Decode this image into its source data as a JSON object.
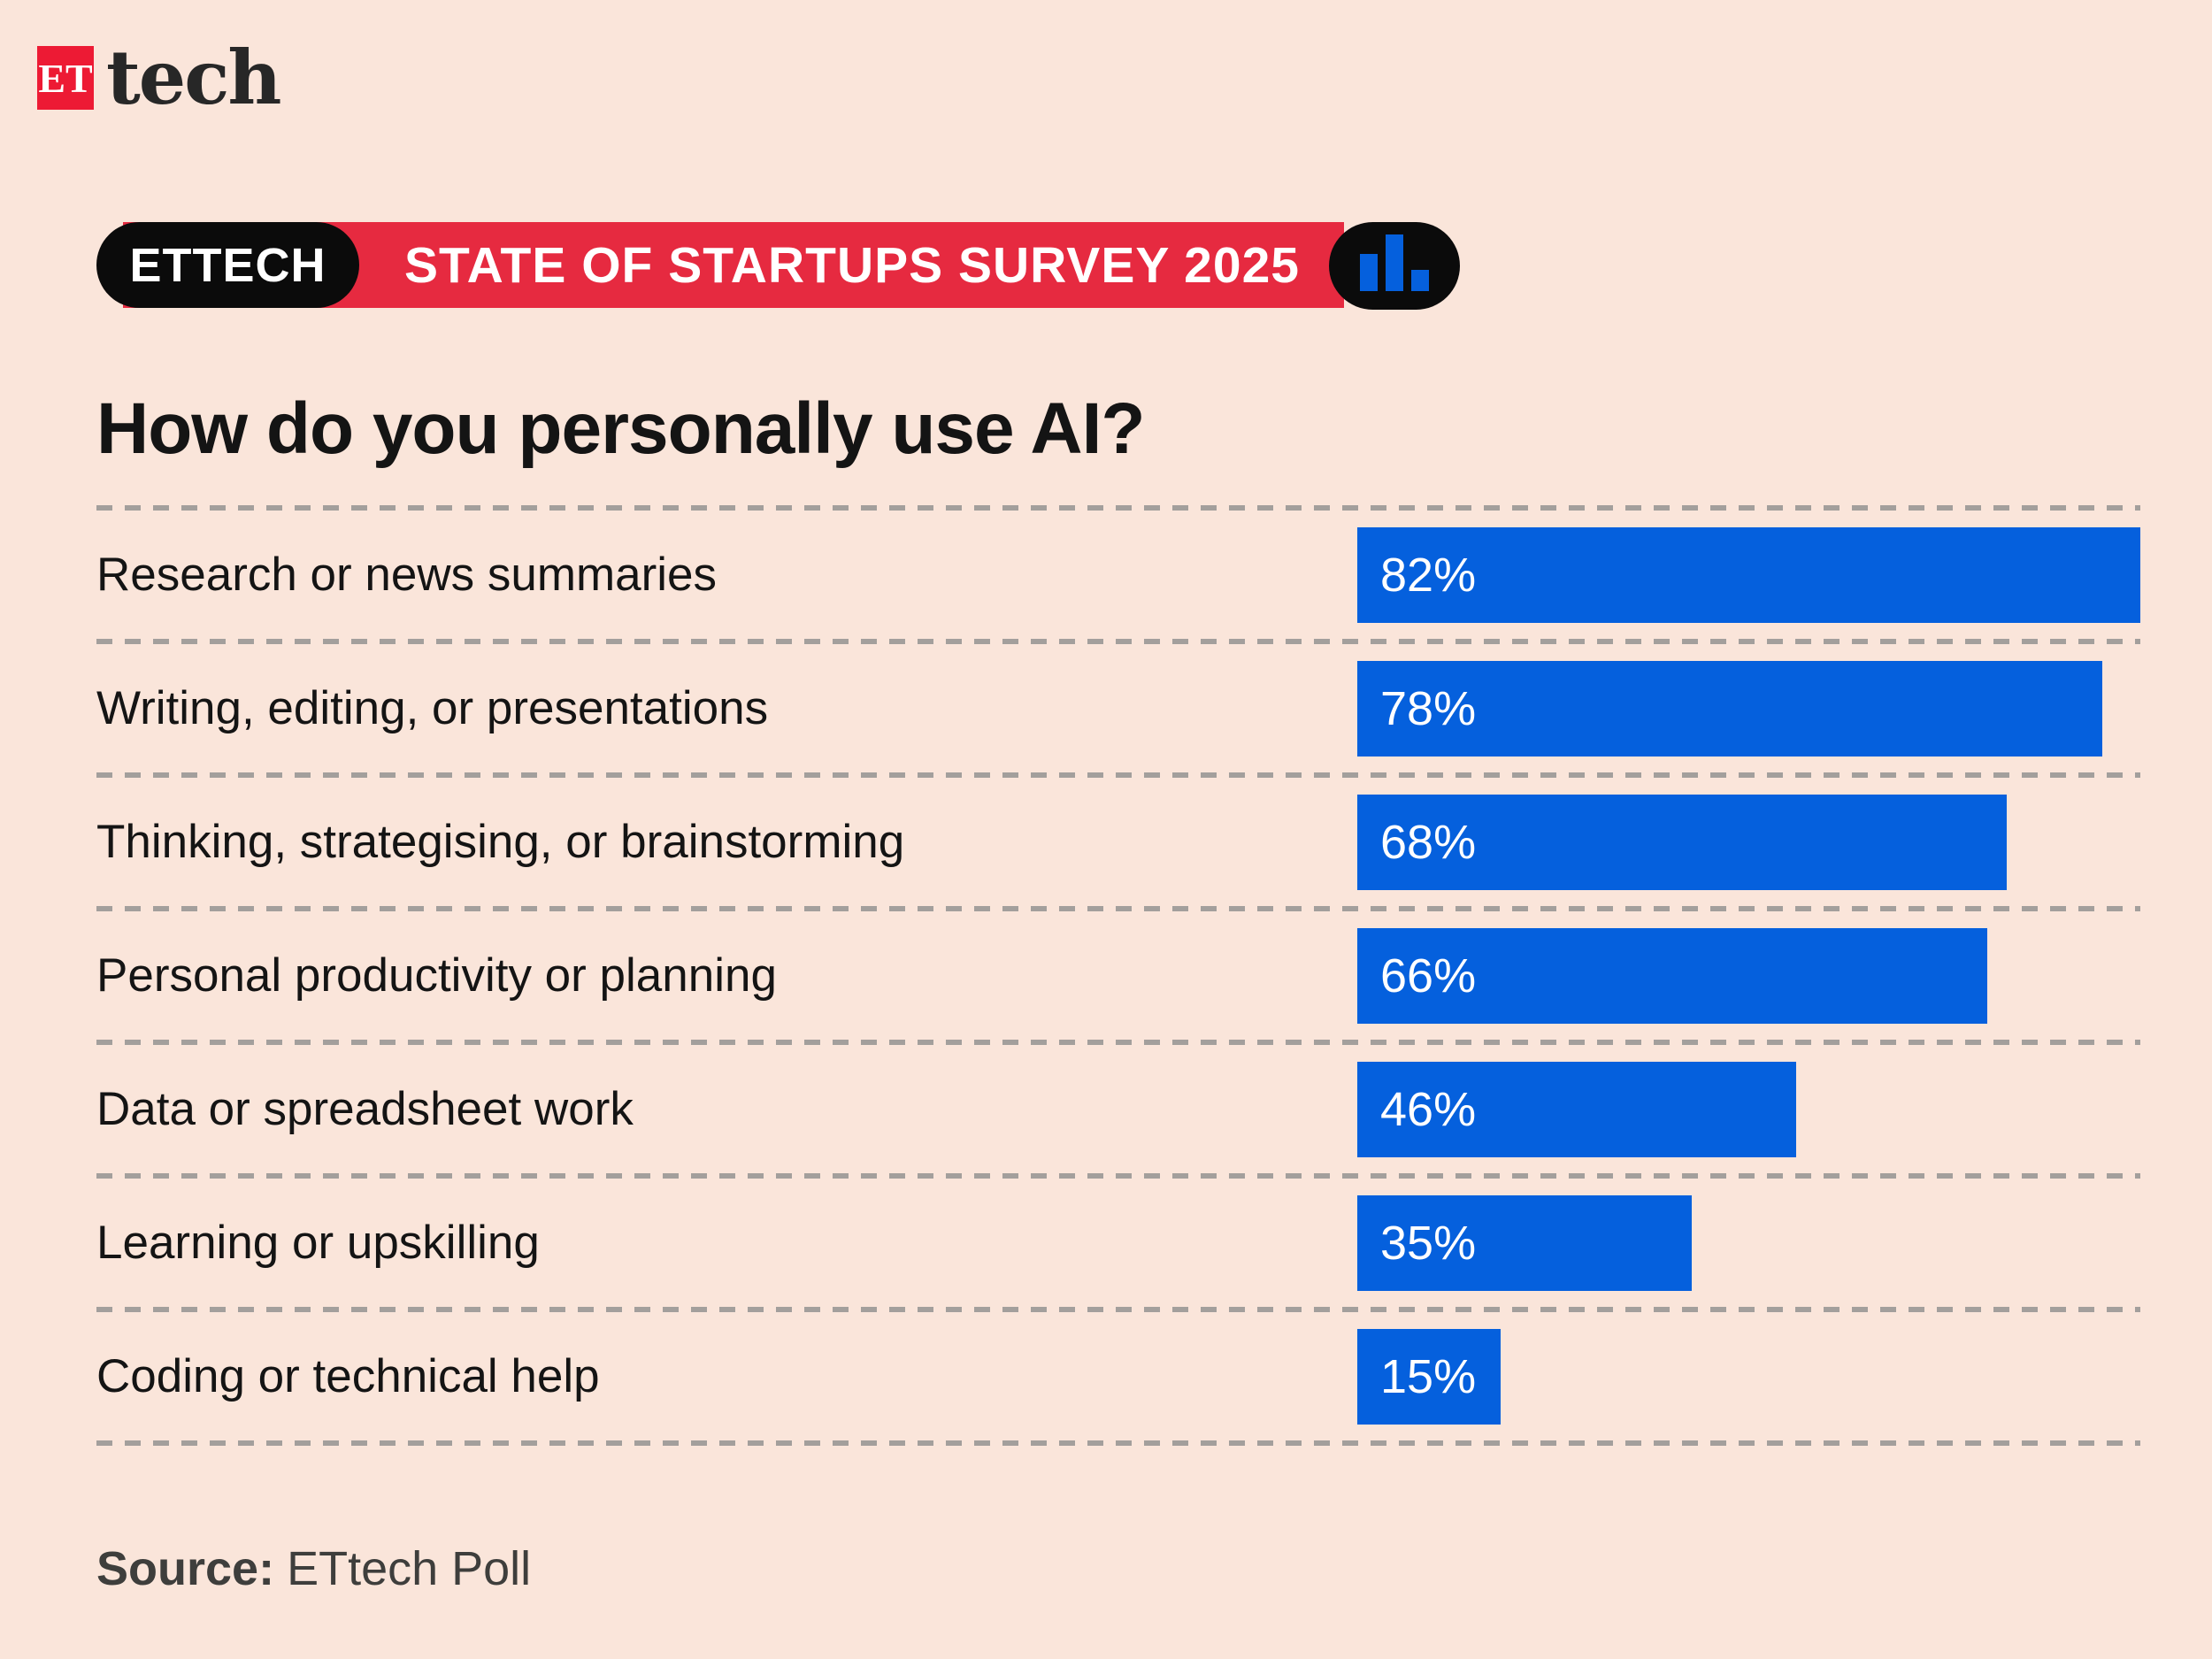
{
  "logo": {
    "mark": "ET",
    "word": "tech"
  },
  "badge": {
    "pill_label": "ETTECH",
    "band_label": "STATE OF STARTUPS SURVEY 2025",
    "icon": "bar-chart-icon"
  },
  "title": "How do you personally use AI?",
  "source": {
    "label": "Source:",
    "value": "ETtech Poll"
  },
  "colors": {
    "background": "#fae5da",
    "bar_blue": "#0560dd",
    "badge_red": "#e62a40",
    "logo_red": "#ed1a34",
    "pill_black": "#0b0b0b",
    "text_dark": "#141414",
    "source_gray": "#3e3e3c",
    "dash_gray": "#a39f9c"
  },
  "chart_data": {
    "type": "bar",
    "orientation": "horizontal",
    "title": "How do you personally use AI?",
    "categories": [
      "Research or news summaries",
      "Writing, editing, or presentations",
      "Thinking, strategising, or brainstorming",
      "Personal productivity or planning",
      "Data or spreadsheet work",
      "Learning or upskilling",
      "Coding or technical help"
    ],
    "values": [
      82,
      78,
      68,
      66,
      46,
      35,
      15
    ],
    "value_labels": [
      "82%",
      "78%",
      "68%",
      "66%",
      "46%",
      "35%",
      "15%"
    ],
    "unit": "%",
    "max_value": 82,
    "value_label_position": "inside-left",
    "gridlines": "dashed-row-separators",
    "legend": "none"
  }
}
